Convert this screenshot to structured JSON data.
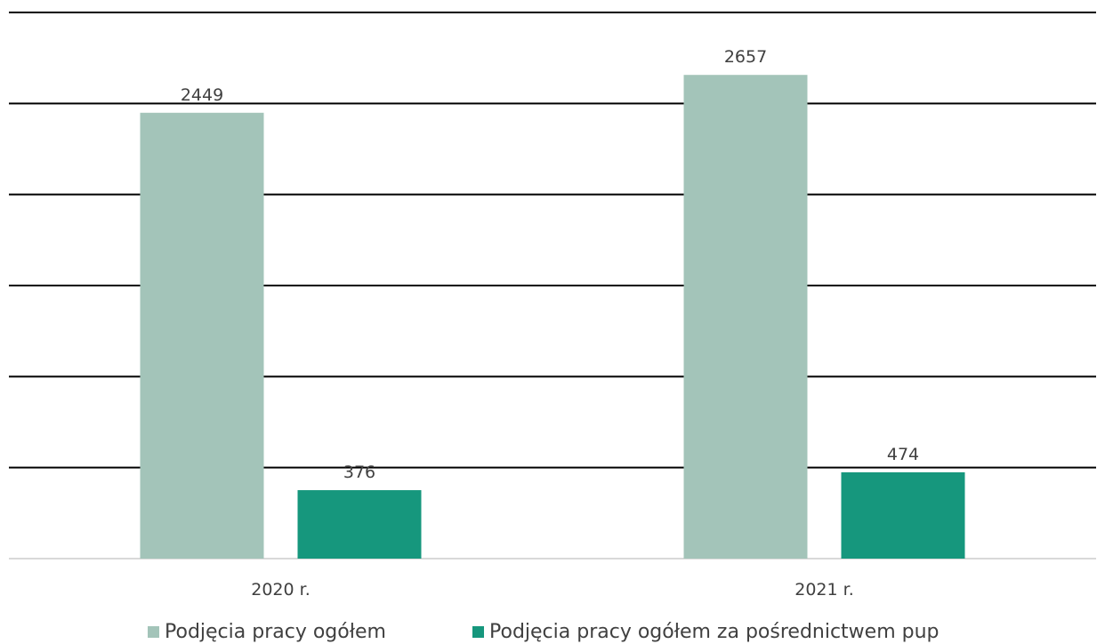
{
  "chart_data": {
    "type": "bar",
    "categories": [
      "2020 r.",
      "2021 r."
    ],
    "series": [
      {
        "name": "Podjęcia pracy ogółem",
        "values": [
          2449,
          2657
        ],
        "color": "#a3c4b9"
      },
      {
        "name": "Podjęcia pracy ogółem za pośrednictwem pup",
        "values": [
          376,
          474
        ],
        "color": "#16977d"
      }
    ],
    "ylim": [
      0,
      3000
    ],
    "gridlines": true,
    "legend": "bottom",
    "data_labels": true
  }
}
